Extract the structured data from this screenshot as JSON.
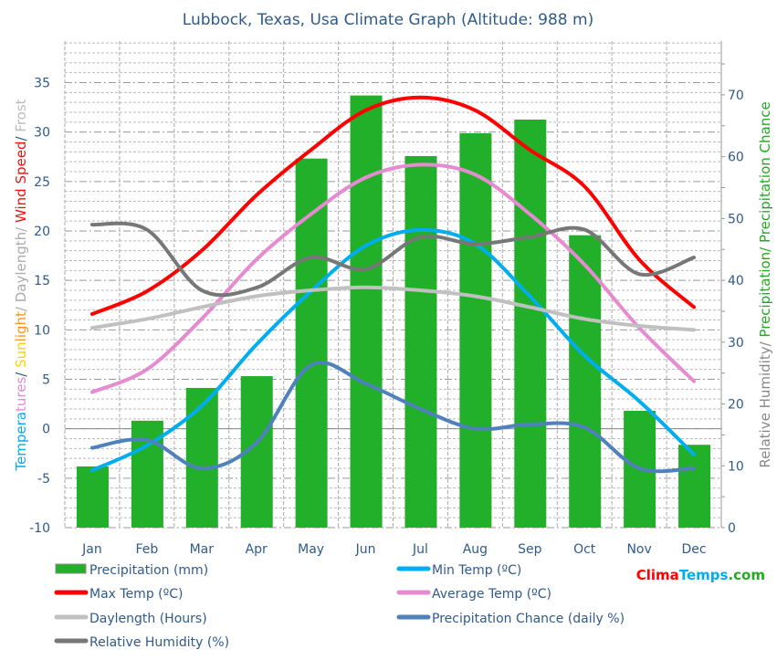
{
  "chart_data": {
    "type": "bar+line",
    "title": "Lubbock, Texas, Usa Climate Graph (Altitude: 988 m)",
    "categories": [
      "Jan",
      "Feb",
      "Mar",
      "Apr",
      "May",
      "Jun",
      "Jul",
      "Aug",
      "Sep",
      "Oct",
      "Nov",
      "Dec"
    ],
    "left_axis": {
      "label_parts": [
        {
          "text": "Tempera",
          "color": "#00aeef"
        },
        {
          "text": "tures",
          "color": "#e68ad1"
        },
        {
          "text": "/ ",
          "color": "#2f5a8c"
        },
        {
          "text": "Sun",
          "color": "#f5d400"
        },
        {
          "text": "light",
          "color": "#f7941d"
        },
        {
          "text": "/ Daylength/ ",
          "color": "#aaaaaa"
        },
        {
          "text": "Wind Speed",
          "color": "#ee1111"
        },
        {
          "text": "/ ",
          "color": "#2f5a8c"
        },
        {
          "text": "Frost",
          "color": "#bbbbbb"
        }
      ],
      "ylim": [
        -10,
        39.2
      ],
      "ticks": [
        -10,
        -5,
        0,
        5,
        10,
        15,
        20,
        25,
        30,
        35
      ]
    },
    "right_axis": {
      "label_parts": [
        {
          "text": "Relative Humidity/ ",
          "color": "#888888"
        },
        {
          "text": "Precipitation/ Precipitation Chance",
          "color": "#22aa22"
        }
      ],
      "ylim": [
        0,
        78.7
      ],
      "ticks": [
        0,
        10,
        20,
        30,
        40,
        50,
        60,
        70
      ]
    },
    "grid": true,
    "legend_placement": "bottom",
    "series": [
      {
        "name": "Precipitation (mm)",
        "kind": "bar",
        "axis": "right",
        "color": "#22b02a",
        "values": [
          9.9,
          17.3,
          22.6,
          24.5,
          59.7,
          69.9,
          60.1,
          63.8,
          66.0,
          47.3,
          18.9,
          13.4
        ]
      },
      {
        "name": "Min Temp (ºC)",
        "kind": "line",
        "axis": "left",
        "color": "#00aeef",
        "values": [
          -4.2,
          -1.7,
          2.3,
          8.5,
          13.9,
          18.5,
          20.1,
          18.7,
          13.4,
          7.4,
          2.8,
          -2.6
        ]
      },
      {
        "name": "Max Temp (ºC)",
        "kind": "line",
        "axis": "left",
        "color": "#ff0000",
        "values": [
          11.6,
          13.9,
          18.0,
          23.6,
          28.2,
          32.2,
          33.5,
          32.2,
          28.2,
          24.5,
          17.1,
          12.3
        ]
      },
      {
        "name": "Average Temp (ºC)",
        "kind": "line",
        "axis": "left",
        "color": "#e68ad1",
        "values": [
          3.7,
          6.0,
          11.1,
          17.1,
          21.7,
          25.4,
          26.7,
          25.7,
          21.7,
          16.6,
          10.2,
          4.8
        ]
      },
      {
        "name": "Daylength (Hours)",
        "kind": "line",
        "axis": "left",
        "color": "#c0c0c0",
        "values": [
          10.2,
          11.1,
          12.3,
          13.4,
          14.0,
          14.3,
          14.0,
          13.4,
          12.3,
          11.1,
          10.4,
          10.0
        ]
      },
      {
        "name": "Precipitation Chance (daily %)",
        "kind": "line",
        "axis": "right",
        "color": "#4f81bd",
        "values": [
          12.9,
          14.2,
          9.6,
          13.7,
          26.3,
          23.3,
          19.2,
          16.0,
          16.7,
          16.2,
          9.6,
          9.6
        ]
      },
      {
        "name": "Relative Humidity (%)",
        "kind": "line",
        "axis": "right",
        "color": "#777777",
        "values": [
          49.0,
          48.2,
          38.4,
          38.8,
          43.7,
          41.8,
          47.0,
          45.9,
          47.0,
          48.2,
          41.0,
          43.7
        ]
      }
    ]
  },
  "brand": {
    "parts": [
      {
        "text": "Clima",
        "color": "#ff0000"
      },
      {
        "text": "Temps",
        "color": "#00aeef"
      },
      {
        "text": ".com",
        "color": "#22aa22"
      }
    ]
  }
}
